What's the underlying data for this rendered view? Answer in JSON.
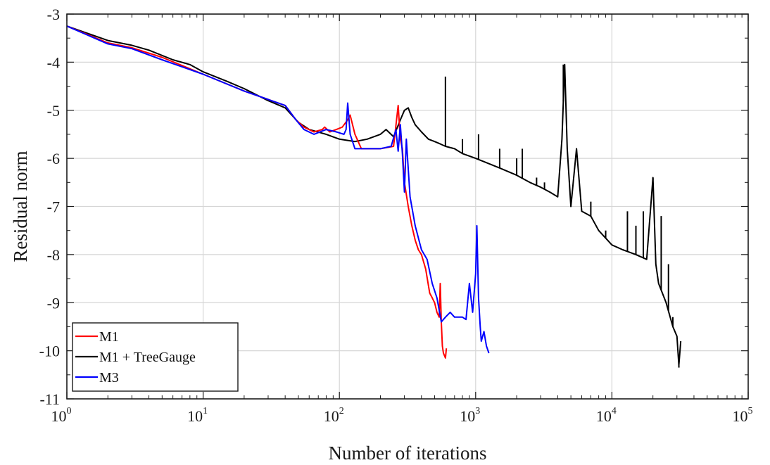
{
  "chart_data": {
    "type": "line",
    "title": "",
    "xlabel": "Number of iterations",
    "ylabel": "Residual norm",
    "xscale": "log",
    "xlim": [
      1,
      100000
    ],
    "ylim": [
      -11,
      -3
    ],
    "grid": true,
    "legend_position": "bottom-left",
    "x_ticks": [
      {
        "base": "10",
        "exp": "0",
        "value": 1
      },
      {
        "base": "10",
        "exp": "1",
        "value": 10
      },
      {
        "base": "10",
        "exp": "2",
        "value": 100
      },
      {
        "base": "10",
        "exp": "3",
        "value": 1000
      },
      {
        "base": "10",
        "exp": "4",
        "value": 10000
      },
      {
        "base": "10",
        "exp": "5",
        "value": 100000
      }
    ],
    "y_ticks": [
      "-3",
      "-4",
      "-5",
      "-6",
      "-7",
      "-8",
      "-9",
      "-10",
      "-11"
    ],
    "series": [
      {
        "name": "M1",
        "color": "#ff0000",
        "x": [
          1,
          2,
          3,
          5,
          10,
          20,
          40,
          48,
          55,
          65,
          75,
          78,
          85,
          95,
          105,
          115,
          120,
          130,
          145,
          160,
          200,
          250,
          270,
          280,
          290,
          300,
          320,
          340,
          360,
          380,
          400,
          430,
          460,
          480,
          500,
          520,
          540,
          550,
          560,
          570,
          580,
          600,
          610
        ],
        "y": [
          -3.25,
          -3.6,
          -3.7,
          -3.9,
          -4.25,
          -4.6,
          -4.9,
          -5.2,
          -5.35,
          -5.45,
          -5.4,
          -5.35,
          -5.45,
          -5.4,
          -5.35,
          -5.2,
          -5.1,
          -5.5,
          -5.8,
          -5.8,
          -5.8,
          -5.75,
          -4.9,
          -5.6,
          -5.8,
          -6.5,
          -7.0,
          -7.4,
          -7.7,
          -7.9,
          -8.0,
          -8.3,
          -8.8,
          -8.9,
          -9.0,
          -9.2,
          -9.3,
          -8.6,
          -9.4,
          -9.9,
          -10.05,
          -10.15,
          -9.95
        ]
      },
      {
        "name": "M1 + TreeGauge",
        "color": "#000000",
        "x": [
          1,
          2,
          3,
          4,
          6,
          8,
          10,
          15,
          20,
          30,
          40,
          50,
          60,
          80,
          100,
          130,
          160,
          200,
          220,
          250,
          280,
          300,
          320,
          340,
          360,
          400,
          450,
          500,
          550,
          600,
          700,
          800,
          1000,
          1500,
          2000,
          2500,
          3000,
          3500,
          4000,
          4300,
          4500,
          4700,
          5000,
          5500,
          6000,
          7000,
          8000,
          10000,
          12000,
          15000,
          18000,
          20000,
          21000,
          22000,
          25000,
          28000,
          30000,
          31000,
          32000
        ],
        "y": [
          -3.25,
          -3.55,
          -3.65,
          -3.75,
          -3.95,
          -4.05,
          -4.2,
          -4.4,
          -4.55,
          -4.8,
          -4.95,
          -5.25,
          -5.4,
          -5.5,
          -5.6,
          -5.65,
          -5.6,
          -5.5,
          -5.4,
          -5.55,
          -5.2,
          -5.0,
          -4.95,
          -5.15,
          -5.3,
          -5.45,
          -5.6,
          -5.65,
          -5.7,
          -5.75,
          -5.8,
          -5.9,
          -6.0,
          -6.2,
          -6.35,
          -6.5,
          -6.6,
          -6.7,
          -6.8,
          -5.6,
          -4.05,
          -5.8,
          -7.0,
          -5.8,
          -7.1,
          -7.2,
          -7.5,
          -7.8,
          -7.9,
          -8.0,
          -8.1,
          -6.4,
          -8.2,
          -8.6,
          -9.0,
          -9.5,
          -9.7,
          -10.3,
          -9.8
        ],
        "spikes": [
          {
            "x": 600,
            "y": -4.3
          },
          {
            "x": 800,
            "y": -5.6
          },
          {
            "x": 1050,
            "y": -5.5
          },
          {
            "x": 1500,
            "y": -5.8
          },
          {
            "x": 2000,
            "y": -6.0
          },
          {
            "x": 2200,
            "y": -5.8
          },
          {
            "x": 2800,
            "y": -6.4
          },
          {
            "x": 3200,
            "y": -6.5
          },
          {
            "x": 4400,
            "y": -4.05
          },
          {
            "x": 5500,
            "y": -5.8
          },
          {
            "x": 7000,
            "y": -6.9
          },
          {
            "x": 9000,
            "y": -7.5
          },
          {
            "x": 13000,
            "y": -7.1
          },
          {
            "x": 15000,
            "y": -7.4
          },
          {
            "x": 17000,
            "y": -7.1
          },
          {
            "x": 20000,
            "y": -6.45
          },
          {
            "x": 23000,
            "y": -7.2
          },
          {
            "x": 26000,
            "y": -8.2
          },
          {
            "x": 28000,
            "y": -9.3
          },
          {
            "x": 31000,
            "y": -10.35
          }
        ]
      },
      {
        "name": "M3",
        "color": "#0000ff",
        "x": [
          1,
          2,
          3,
          5,
          10,
          20,
          40,
          48,
          55,
          65,
          80,
          95,
          108,
          112,
          115,
          120,
          130,
          140,
          160,
          200,
          240,
          260,
          270,
          280,
          290,
          300,
          310,
          330,
          360,
          400,
          440,
          480,
          520,
          560,
          600,
          650,
          700,
          750,
          800,
          850,
          900,
          950,
          1000,
          1020,
          1050,
          1080,
          1100,
          1150,
          1200,
          1250
        ],
        "y": [
          -3.25,
          -3.62,
          -3.72,
          -3.95,
          -4.25,
          -4.6,
          -4.9,
          -5.2,
          -5.4,
          -5.5,
          -5.4,
          -5.45,
          -5.5,
          -5.4,
          -4.85,
          -5.5,
          -5.8,
          -5.8,
          -5.8,
          -5.8,
          -5.75,
          -5.4,
          -5.85,
          -5.3,
          -5.9,
          -6.7,
          -5.6,
          -6.8,
          -7.4,
          -7.9,
          -8.1,
          -8.6,
          -8.9,
          -9.4,
          -9.3,
          -9.2,
          -9.3,
          -9.3,
          -9.3,
          -9.35,
          -8.6,
          -9.2,
          -8.4,
          -7.4,
          -8.9,
          -9.5,
          -9.8,
          -9.6,
          -9.9,
          -10.05
        ]
      }
    ]
  }
}
